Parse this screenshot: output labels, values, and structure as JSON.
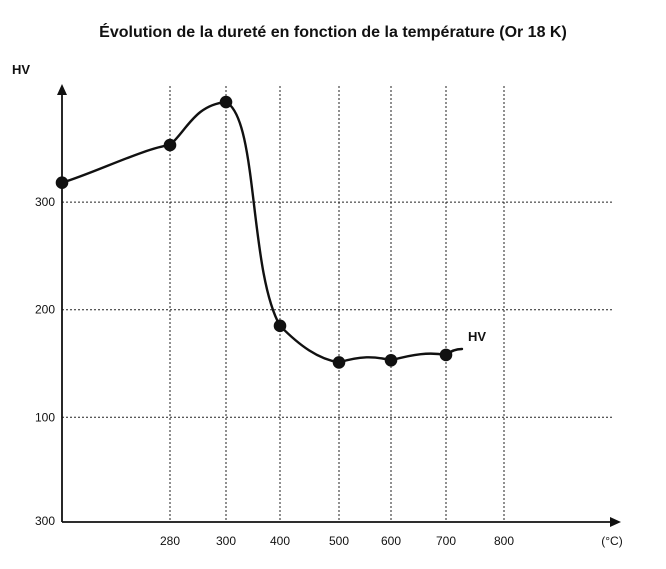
{
  "chart_data": {
    "type": "line",
    "title": "Évolution de la dureté en fonction de la température (Or 18 K)",
    "ylabel": "HV",
    "xlabel": "(°C)",
    "x_ticks": [
      "280",
      "300",
      "400",
      "500",
      "600",
      "700",
      "800"
    ],
    "y_ticks": [
      "300",
      "200",
      "100"
    ],
    "y_origin_label": "300",
    "y_axis_arrow": true,
    "x_axis_arrow": true,
    "grid": true,
    "series": [
      {
        "name": "HV",
        "color": "#111111",
        "points": [
          {
            "x": "start",
            "y": 318
          },
          {
            "x": "280",
            "y": 353
          },
          {
            "x": "300",
            "y": 393
          },
          {
            "x": "400",
            "y": 185
          },
          {
            "x": "500",
            "y": 151
          },
          {
            "x": "600",
            "y": 153
          },
          {
            "x": "700",
            "y": 158
          }
        ]
      }
    ]
  }
}
